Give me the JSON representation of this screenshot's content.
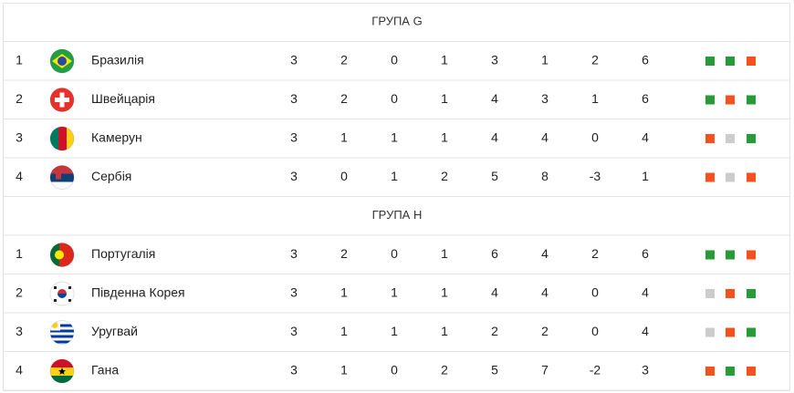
{
  "groups": [
    {
      "title": "ГРУПА G",
      "rows": [
        {
          "position": 1,
          "team": "Бразилія",
          "stats": [
            3,
            2,
            0,
            1,
            3,
            1,
            2,
            6
          ],
          "form": [
            "#279b37",
            "#279b37",
            "#f4511e"
          ]
        },
        {
          "position": 2,
          "team": "Швейцарія",
          "stats": [
            3,
            2,
            0,
            1,
            4,
            3,
            1,
            6
          ],
          "form": [
            "#279b37",
            "#f4511e",
            "#279b37"
          ]
        },
        {
          "position": 3,
          "team": "Камерун",
          "stats": [
            3,
            1,
            1,
            1,
            4,
            4,
            0,
            4
          ],
          "form": [
            "#f4511e",
            "#cccccc",
            "#279b37"
          ]
        },
        {
          "position": 4,
          "team": "Сербія",
          "stats": [
            3,
            0,
            1,
            2,
            5,
            8,
            -3,
            1
          ],
          "form": [
            "#f4511e",
            "#cccccc",
            "#f4511e"
          ]
        }
      ]
    },
    {
      "title": "ГРУПА H",
      "rows": [
        {
          "position": 1,
          "team": "Португалія",
          "stats": [
            3,
            2,
            0,
            1,
            6,
            4,
            2,
            6
          ],
          "form": [
            "#279b37",
            "#279b37",
            "#f4511e"
          ]
        },
        {
          "position": 2,
          "team": "Південна Корея",
          "stats": [
            3,
            1,
            1,
            1,
            4,
            4,
            0,
            4
          ],
          "form": [
            "#cccccc",
            "#f4511e",
            "#279b37"
          ]
        },
        {
          "position": 3,
          "team": "Уругвай",
          "stats": [
            3,
            1,
            1,
            1,
            2,
            2,
            0,
            4
          ],
          "form": [
            "#cccccc",
            "#f4511e",
            "#279b37"
          ]
        },
        {
          "position": 4,
          "team": "Гана",
          "stats": [
            3,
            1,
            0,
            2,
            5,
            7,
            -2,
            3
          ],
          "form": [
            "#f4511e",
            "#279b37",
            "#f4511e"
          ]
        }
      ]
    }
  ]
}
